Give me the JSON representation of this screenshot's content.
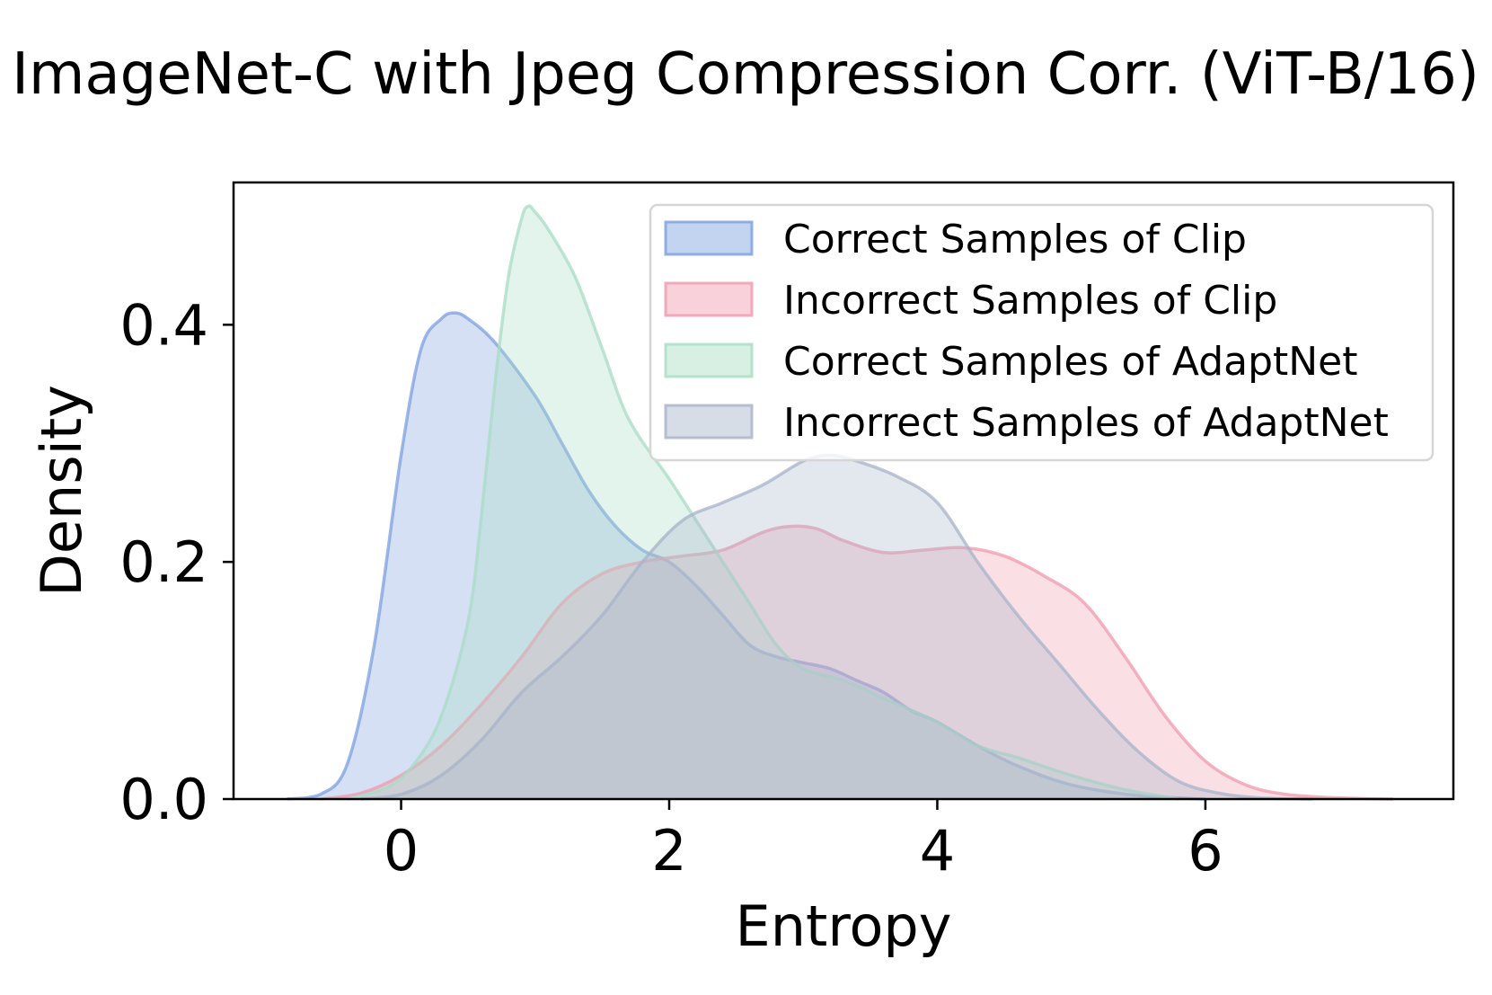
{
  "chart_data": {
    "type": "area",
    "title": "ImageNet-C with Jpeg Compression Corr. (ViT-B/16)",
    "xlabel": "Entropy",
    "ylabel": "Density",
    "xlim": [
      -1.25,
      7.85
    ],
    "ylim": [
      0,
      0.52
    ],
    "xticks": [
      0,
      2,
      4,
      6
    ],
    "yticks": [
      0.0,
      0.2,
      0.4
    ],
    "xtick_labels": [
      "0",
      "2",
      "4",
      "6"
    ],
    "ytick_labels": [
      "0.0",
      "0.2",
      "0.4"
    ],
    "grid": false,
    "legend_position": "top-right",
    "series": [
      {
        "name": "Correct Samples of Clip",
        "color": "#7b9fe0",
        "x": [
          -0.85,
          -0.6,
          -0.4,
          -0.2,
          0.0,
          0.15,
          0.3,
          0.4,
          0.5,
          0.7,
          1.0,
          1.2,
          1.4,
          1.6,
          1.8,
          2.0,
          2.2,
          2.4,
          2.6,
          2.8,
          3.0,
          3.2,
          3.4,
          3.6,
          3.8,
          4.0,
          4.3,
          4.6,
          5.0,
          5.5,
          6.0
        ],
        "values": [
          0.0,
          0.004,
          0.03,
          0.13,
          0.29,
          0.38,
          0.405,
          0.41,
          0.405,
          0.385,
          0.34,
          0.3,
          0.26,
          0.23,
          0.21,
          0.2,
          0.18,
          0.155,
          0.13,
          0.12,
          0.115,
          0.11,
          0.1,
          0.09,
          0.075,
          0.065,
          0.045,
          0.028,
          0.012,
          0.003,
          0.0
        ]
      },
      {
        "name": "Incorrect Samples of Clip",
        "color": "#f09aae",
        "x": [
          -0.6,
          -0.3,
          0.0,
          0.3,
          0.6,
          0.9,
          1.2,
          1.5,
          1.8,
          2.1,
          2.4,
          2.7,
          2.9,
          3.1,
          3.3,
          3.6,
          3.9,
          4.2,
          4.5,
          4.8,
          5.1,
          5.4,
          5.7,
          6.0,
          6.3,
          6.6,
          7.0,
          7.4
        ],
        "values": [
          0.0,
          0.005,
          0.02,
          0.045,
          0.08,
          0.12,
          0.165,
          0.19,
          0.2,
          0.205,
          0.21,
          0.225,
          0.23,
          0.228,
          0.218,
          0.208,
          0.21,
          0.212,
          0.205,
          0.188,
          0.165,
          0.12,
          0.07,
          0.032,
          0.012,
          0.004,
          0.001,
          0.0
        ]
      },
      {
        "name": "Correct Samples of AdaptNet",
        "color": "#a8dcc4",
        "x": [
          -0.4,
          -0.1,
          0.1,
          0.3,
          0.5,
          0.6,
          0.7,
          0.8,
          0.9,
          0.95,
          1.0,
          1.1,
          1.3,
          1.5,
          1.7,
          2.0,
          2.2,
          2.4,
          2.6,
          2.8,
          3.0,
          3.3,
          3.6,
          4.0,
          4.3,
          4.6,
          5.0,
          5.4,
          5.8
        ],
        "values": [
          0.0,
          0.01,
          0.03,
          0.07,
          0.15,
          0.24,
          0.35,
          0.44,
          0.49,
          0.5,
          0.495,
          0.48,
          0.44,
          0.38,
          0.32,
          0.27,
          0.235,
          0.2,
          0.165,
          0.13,
          0.11,
          0.1,
          0.085,
          0.065,
          0.045,
          0.035,
          0.02,
          0.008,
          0.0
        ]
      },
      {
        "name": "Incorrect Samples of AdaptNet",
        "color": "#a7b3ca",
        "x": [
          -0.3,
          0.0,
          0.3,
          0.6,
          0.9,
          1.2,
          1.5,
          1.8,
          2.1,
          2.4,
          2.7,
          3.0,
          3.2,
          3.4,
          3.7,
          4.0,
          4.3,
          4.6,
          4.9,
          5.2,
          5.5,
          5.8,
          6.1,
          6.4,
          6.8
        ],
        "values": [
          0.0,
          0.004,
          0.02,
          0.05,
          0.09,
          0.12,
          0.155,
          0.2,
          0.235,
          0.25,
          0.265,
          0.285,
          0.29,
          0.285,
          0.272,
          0.25,
          0.2,
          0.155,
          0.115,
          0.075,
          0.04,
          0.015,
          0.005,
          0.001,
          0.0
        ]
      }
    ]
  }
}
